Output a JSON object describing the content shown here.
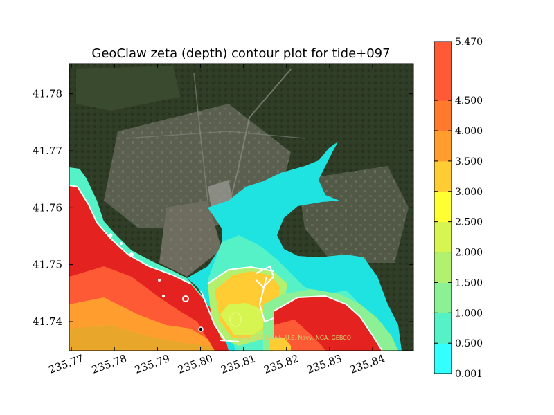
{
  "chart_data": {
    "type": "heatmap",
    "title": "GeoClaw zeta (depth) contour plot for tide+097",
    "xlabel": "",
    "ylabel": "",
    "xlim": [
      235.7695,
      235.8495
    ],
    "ylim": [
      41.7349,
      41.7853
    ],
    "x_ticks": [
      "235.77",
      "235.78",
      "235.79",
      "235.80",
      "235.81",
      "235.82",
      "235.83",
      "235.84"
    ],
    "x_tick_values": [
      235.77,
      235.78,
      235.79,
      235.8,
      235.81,
      235.82,
      235.83,
      235.84
    ],
    "y_ticks": [
      "41.74",
      "41.75",
      "41.76",
      "41.77",
      "41.78"
    ],
    "y_tick_values": [
      41.74,
      41.75,
      41.76,
      41.77,
      41.78
    ],
    "x_tick_rotation_deg": 20,
    "background": "satellite imagery",
    "attribution": "Data SIO, NOAA, U.S. Navy, NGA, GEBCO",
    "colorbar": {
      "position": "right",
      "levels": [
        "0.001",
        "0.500",
        "1.000",
        "1.500",
        "2.000",
        "2.500",
        "3.000",
        "3.500",
        "4.000",
        "4.500",
        "5.470"
      ],
      "level_values": [
        0.001,
        0.5,
        1.0,
        1.5,
        2.0,
        2.5,
        3.0,
        3.5,
        4.0,
        4.5,
        5.47
      ],
      "colors": [
        "#33ffff",
        "#55f2c8",
        "#8cf095",
        "#b2f070",
        "#d6f550",
        "#ffff33",
        "#ffcc33",
        "#ff9e2e",
        "#ff7a2c",
        "#ff5a36"
      ]
    }
  }
}
